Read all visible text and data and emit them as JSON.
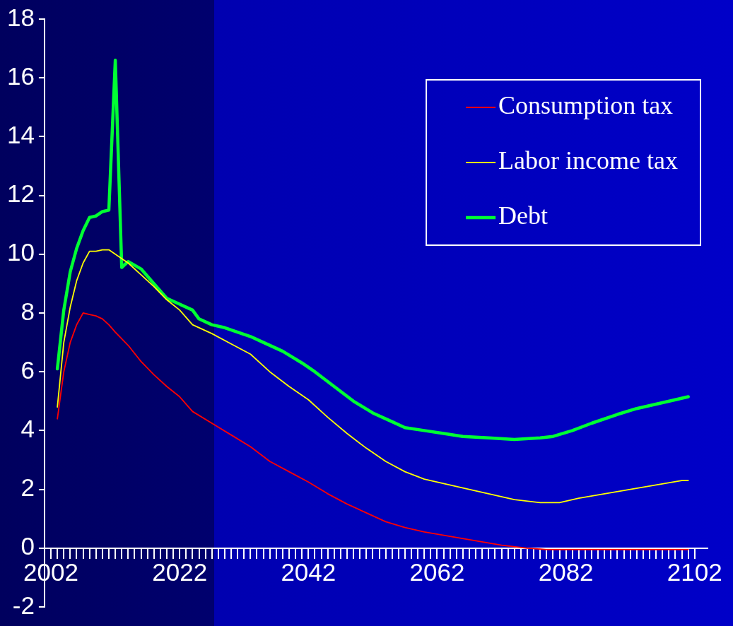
{
  "chart_data": {
    "type": "line",
    "xlim": [
      2001,
      2104
    ],
    "ylim": [
      -2,
      18
    ],
    "yticks": [
      -2,
      0,
      2,
      4,
      6,
      8,
      10,
      12,
      14,
      16,
      18
    ],
    "xticks": [
      2002,
      {
        "value": 2003,
        "label": null
      },
      {
        "value": 2004,
        "label": null
      },
      {
        "value": 2005,
        "label": null
      },
      {
        "value": 2006,
        "label": null
      },
      {
        "value": 2007,
        "label": null
      },
      {
        "value": 2008,
        "label": null
      },
      {
        "value": 2009,
        "label": null
      },
      {
        "value": 2010,
        "label": null
      },
      {
        "value": 2011,
        "label": null
      },
      {
        "value": 2012,
        "label": null
      },
      {
        "value": 2013,
        "label": null
      },
      {
        "value": 2014,
        "label": null
      },
      {
        "value": 2015,
        "label": null
      },
      {
        "value": 2016,
        "label": null
      },
      {
        "value": 2017,
        "label": null
      },
      {
        "value": 2018,
        "label": null
      },
      {
        "value": 2019,
        "label": null
      },
      {
        "value": 2020,
        "label": null
      },
      {
        "value": 2021,
        "label": null
      },
      2022,
      {
        "value": 2023,
        "label": null
      },
      {
        "value": 2024,
        "label": null
      },
      {
        "value": 2025,
        "label": null
      },
      {
        "value": 2026,
        "label": null
      },
      {
        "value": 2027,
        "label": null
      },
      {
        "value": 2028,
        "label": null
      },
      {
        "value": 2029,
        "label": null
      },
      {
        "value": 2030,
        "label": null
      },
      {
        "value": 2031,
        "label": null
      },
      {
        "value": 2032,
        "label": null
      },
      {
        "value": 2033,
        "label": null
      },
      {
        "value": 2034,
        "label": null
      },
      {
        "value": 2035,
        "label": null
      },
      {
        "value": 2036,
        "label": null
      },
      {
        "value": 2037,
        "label": null
      },
      {
        "value": 2038,
        "label": null
      },
      {
        "value": 2039,
        "label": null
      },
      {
        "value": 2040,
        "label": null
      },
      {
        "value": 2041,
        "label": null
      },
      2042,
      {
        "value": 2043,
        "label": null
      },
      {
        "value": 2044,
        "label": null
      },
      {
        "value": 2045,
        "label": null
      },
      {
        "value": 2046,
        "label": null
      },
      {
        "value": 2047,
        "label": null
      },
      {
        "value": 2048,
        "label": null
      },
      {
        "value": 2049,
        "label": null
      },
      {
        "value": 2050,
        "label": null
      },
      {
        "value": 2051,
        "label": null
      },
      {
        "value": 2052,
        "label": null
      },
      {
        "value": 2053,
        "label": null
      },
      {
        "value": 2054,
        "label": null
      },
      {
        "value": 2055,
        "label": null
      },
      {
        "value": 2056,
        "label": null
      },
      {
        "value": 2057,
        "label": null
      },
      {
        "value": 2058,
        "label": null
      },
      {
        "value": 2059,
        "label": null
      },
      {
        "value": 2060,
        "label": null
      },
      {
        "value": 2061,
        "label": null
      },
      2062,
      {
        "value": 2063,
        "label": null
      },
      {
        "value": 2064,
        "label": null
      },
      {
        "value": 2065,
        "label": null
      },
      {
        "value": 2066,
        "label": null
      },
      {
        "value": 2067,
        "label": null
      },
      {
        "value": 2068,
        "label": null
      },
      {
        "value": 2069,
        "label": null
      },
      {
        "value": 2070,
        "label": null
      },
      {
        "value": 2071,
        "label": null
      },
      {
        "value": 2072,
        "label": null
      },
      {
        "value": 2073,
        "label": null
      },
      {
        "value": 2074,
        "label": null
      },
      {
        "value": 2075,
        "label": null
      },
      {
        "value": 2076,
        "label": null
      },
      {
        "value": 2077,
        "label": null
      },
      {
        "value": 2078,
        "label": null
      },
      {
        "value": 2079,
        "label": null
      },
      {
        "value": 2080,
        "label": null
      },
      {
        "value": 2081,
        "label": null
      },
      2082,
      {
        "value": 2083,
        "label": null
      },
      {
        "value": 2084,
        "label": null
      },
      {
        "value": 2085,
        "label": null
      },
      {
        "value": 2086,
        "label": null
      },
      {
        "value": 2087,
        "label": null
      },
      {
        "value": 2088,
        "label": null
      },
      {
        "value": 2089,
        "label": null
      },
      {
        "value": 2090,
        "label": null
      },
      {
        "value": 2091,
        "label": null
      },
      {
        "value": 2092,
        "label": null
      },
      {
        "value": 2093,
        "label": null
      },
      {
        "value": 2094,
        "label": null
      },
      {
        "value": 2095,
        "label": null
      },
      {
        "value": 2096,
        "label": null
      },
      {
        "value": 2097,
        "label": null
      },
      {
        "value": 2098,
        "label": null
      },
      {
        "value": 2099,
        "label": null
      },
      {
        "value": 2100,
        "label": null
      },
      {
        "value": 2101,
        "label": null
      },
      2102
    ],
    "legend": "top right",
    "marker": "none",
    "series": [
      {
        "name": "Consumption tax",
        "color": "#ff0000",
        "x": [
          2003,
          2004,
          2005,
          2006,
          2007,
          2008,
          2009,
          2010,
          2011,
          2012,
          2014,
          2016,
          2018,
          2020,
          2022,
          2024,
          2027,
          2030,
          2033,
          2036,
          2039,
          2042,
          2045,
          2048,
          2051,
          2054,
          2057,
          2060,
          2064,
          2068,
          2072,
          2076,
          2079,
          2085,
          2095,
          2101
        ],
        "values": [
          4.4,
          6.0,
          7.0,
          7.6,
          8.0,
          7.95,
          7.9,
          7.8,
          7.6,
          7.35,
          6.9,
          6.35,
          5.9,
          5.5,
          5.15,
          4.65,
          4.25,
          3.85,
          3.45,
          2.95,
          2.6,
          2.25,
          1.85,
          1.5,
          1.2,
          0.9,
          0.7,
          0.55,
          0.4,
          0.25,
          0.1,
          0.0,
          -0.05,
          -0.05,
          -0.05,
          -0.05
        ]
      },
      {
        "name": "Labor income tax",
        "color": "#ffff00",
        "x": [
          2003,
          2004,
          2005,
          2006,
          2007,
          2008,
          2009,
          2010,
          2011,
          2012,
          2014,
          2016,
          2018,
          2020,
          2022,
          2024,
          2027,
          2030,
          2033,
          2036,
          2039,
          2042,
          2045,
          2048,
          2051,
          2054,
          2057,
          2060,
          2063,
          2066,
          2070,
          2074,
          2078,
          2081,
          2084,
          2088,
          2092,
          2096,
          2100,
          2101
        ],
        "values": [
          4.8,
          7.0,
          8.2,
          9.1,
          9.7,
          10.1,
          10.1,
          10.15,
          10.15,
          10.0,
          9.7,
          9.3,
          8.9,
          8.45,
          8.1,
          7.6,
          7.3,
          6.95,
          6.6,
          6.0,
          5.5,
          5.05,
          4.45,
          3.9,
          3.4,
          2.95,
          2.6,
          2.35,
          2.2,
          2.05,
          1.85,
          1.65,
          1.55,
          1.55,
          1.7,
          1.85,
          2.0,
          2.15,
          2.3,
          2.3
        ]
      },
      {
        "name": "Debt",
        "color": "#00ff33",
        "x": [
          2003,
          2004,
          2005,
          2006,
          2007,
          2008,
          2009,
          2010,
          2011,
          2012,
          2013,
          2014,
          2016,
          2018,
          2020,
          2022,
          2024,
          2025,
          2027,
          2029,
          2031,
          2033,
          2035,
          2038,
          2041,
          2043,
          2046,
          2049,
          2052,
          2055,
          2057,
          2060,
          2063,
          2066,
          2070,
          2074,
          2078,
          2080,
          2083,
          2086,
          2090,
          2093,
          2096,
          2099,
          2101
        ],
        "values": [
          6.1,
          8.1,
          9.4,
          10.2,
          10.8,
          11.25,
          11.3,
          11.45,
          11.5,
          16.6,
          9.55,
          9.75,
          9.5,
          9.0,
          8.5,
          8.3,
          8.1,
          7.8,
          7.6,
          7.5,
          7.35,
          7.2,
          7.0,
          6.7,
          6.3,
          6.0,
          5.5,
          5.0,
          4.6,
          4.3,
          4.1,
          4.0,
          3.9,
          3.8,
          3.75,
          3.7,
          3.75,
          3.8,
          4.0,
          4.25,
          4.55,
          4.75,
          4.9,
          5.05,
          5.15
        ]
      }
    ]
  }
}
